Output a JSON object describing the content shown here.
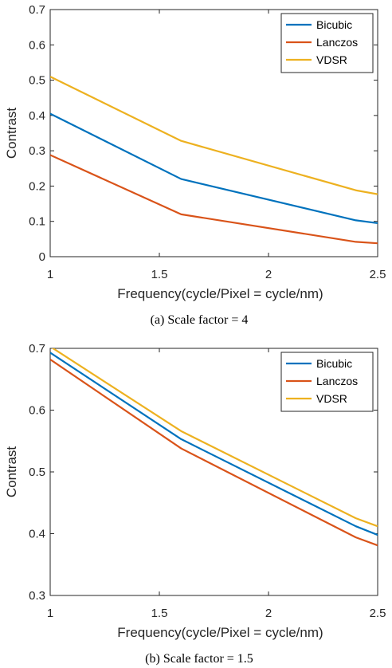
{
  "chart_data": [
    {
      "type": "line",
      "caption": "(a) Scale factor = 4",
      "xlabel": "Frequency(cycle/Pixel = cycle/nm)",
      "ylabel": "Contrast",
      "xlim": [
        1,
        2.5
      ],
      "ylim": [
        0,
        0.7
      ],
      "xticks": [
        1,
        1.5,
        2,
        2.5
      ],
      "xtick_labels": [
        "1",
        "1.5",
        "2",
        "2.5"
      ],
      "yticks": [
        0,
        0.1,
        0.2,
        0.3,
        0.4,
        0.5,
        0.6,
        0.7
      ],
      "ytick_labels": [
        "0",
        "0.1",
        "0.2",
        "0.3",
        "0.4",
        "0.5",
        "0.6",
        "0.7"
      ],
      "grid": false,
      "legend_position": "top-right",
      "x": [
        1,
        1.6,
        2.4,
        2.5
      ],
      "series": [
        {
          "name": "Bicubic",
          "color": "#0072BD",
          "values": [
            0.405,
            0.22,
            0.103,
            0.095
          ]
        },
        {
          "name": "Lanczos",
          "color": "#D95319",
          "values": [
            0.288,
            0.12,
            0.042,
            0.038
          ]
        },
        {
          "name": "VDSR",
          "color": "#EDB120",
          "values": [
            0.51,
            0.328,
            0.188,
            0.177
          ]
        }
      ]
    },
    {
      "type": "line",
      "caption": "(b) Scale factor = 1.5",
      "xlabel": "Frequency(cycle/Pixel = cycle/nm)",
      "ylabel": "Contrast",
      "xlim": [
        1,
        2.5
      ],
      "ylim": [
        0.3,
        0.7
      ],
      "xticks": [
        1,
        1.5,
        2,
        2.5
      ],
      "xtick_labels": [
        "1",
        "1.5",
        "2",
        "2.5"
      ],
      "yticks": [
        0.3,
        0.4,
        0.5,
        0.6,
        0.7
      ],
      "ytick_labels": [
        "0.3",
        "0.4",
        "0.5",
        "0.6",
        "0.7"
      ],
      "grid": false,
      "legend_position": "top-right",
      "x": [
        1,
        1.6,
        2.4,
        2.5
      ],
      "series": [
        {
          "name": "Bicubic",
          "color": "#0072BD",
          "values": [
            0.693,
            0.553,
            0.412,
            0.398
          ]
        },
        {
          "name": "Lanczos",
          "color": "#D95319",
          "values": [
            0.682,
            0.538,
            0.394,
            0.381
          ]
        },
        {
          "name": "VDSR",
          "color": "#EDB120",
          "values": [
            0.703,
            0.566,
            0.425,
            0.412
          ]
        }
      ]
    }
  ]
}
